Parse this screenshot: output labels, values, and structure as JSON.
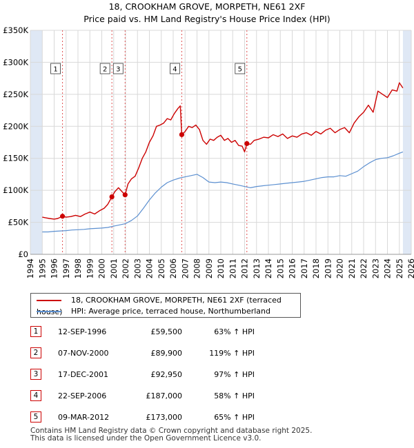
{
  "title": {
    "line1": "18, CROOKHAM GROVE, MORPETH, NE61 2XF",
    "line2": "Price paid vs. HM Land Registry's House Price Index (HPI)"
  },
  "colors": {
    "property": "#cc0000",
    "hpi": "#5b8fd0",
    "shade": "#dfe8f5",
    "vline": "#e05050"
  },
  "legend": {
    "property_label": "18, CROOKHAM GROVE, MORPETH, NE61 2XF (terraced house)",
    "hpi_label": "HPI: Average price, terraced house, Northumberland"
  },
  "sales": [
    {
      "num": "1",
      "date": "12-SEP-1996",
      "price": "£59,500",
      "hpi": "63% ↑ HPI"
    },
    {
      "num": "2",
      "date": "07-NOV-2000",
      "price": "£89,900",
      "hpi": "119% ↑ HPI"
    },
    {
      "num": "3",
      "date": "17-DEC-2001",
      "price": "£92,950",
      "hpi": "97% ↑ HPI"
    },
    {
      "num": "4",
      "date": "22-SEP-2006",
      "price": "£187,000",
      "hpi": "58% ↑ HPI"
    },
    {
      "num": "5",
      "date": "09-MAR-2012",
      "price": "£173,000",
      "hpi": "65% ↑ HPI"
    }
  ],
  "footer": {
    "line1": "Contains HM Land Registry data © Crown copyright and database right 2025.",
    "line2": "This data is licensed under the Open Government Licence v3.0."
  },
  "chart_data": {
    "type": "line",
    "title": "18, CROOKHAM GROVE, MORPETH, NE61 2XF",
    "subtitle": "Price paid vs. HM Land Registry's House Price Index (HPI)",
    "xlabel": "",
    "ylabel": "",
    "xlim": [
      1994,
      2026
    ],
    "ylim": [
      0,
      350000
    ],
    "grid": true,
    "legend_position": "below",
    "y_ticks": [
      0,
      50000,
      100000,
      150000,
      200000,
      250000,
      300000,
      350000
    ],
    "y_tick_labels": [
      "£0",
      "£50K",
      "£100K",
      "£150K",
      "£200K",
      "£250K",
      "£300K",
      "£350K"
    ],
    "x_ticks": [
      1994,
      1995,
      1996,
      1997,
      1998,
      1999,
      2000,
      2001,
      2002,
      2003,
      2004,
      2005,
      2006,
      2007,
      2008,
      2009,
      2010,
      2011,
      2012,
      2013,
      2014,
      2015,
      2016,
      2017,
      2018,
      2019,
      2020,
      2021,
      2022,
      2023,
      2024,
      2025,
      2026
    ],
    "shaded_ranges": [
      [
        1994,
        1995
      ],
      [
        2025.3,
        2026
      ]
    ],
    "sale_markers": [
      {
        "label": "1",
        "x": 1996.7,
        "y": 59500
      },
      {
        "label": "2",
        "x": 2000.85,
        "y": 89900
      },
      {
        "label": "3",
        "x": 2001.96,
        "y": 92950
      },
      {
        "label": "4",
        "x": 2006.72,
        "y": 187000
      },
      {
        "label": "5",
        "x": 2012.19,
        "y": 173000
      }
    ],
    "series": [
      {
        "name": "18, CROOKHAM GROVE, MORPETH, NE61 2XF (terraced house)",
        "x": [
          1995.0,
          1995.3,
          1995.6,
          1996.0,
          1996.3,
          1996.7,
          1997.0,
          1997.4,
          1997.8,
          1998.2,
          1998.6,
          1999.0,
          1999.4,
          1999.8,
          2000.2,
          2000.5,
          2000.85,
          2001.1,
          2001.4,
          2001.7,
          2001.96,
          2002.2,
          2002.5,
          2002.8,
          2003.1,
          2003.4,
          2003.7,
          2004.0,
          2004.3,
          2004.6,
          2004.9,
          2005.2,
          2005.5,
          2005.8,
          2006.1,
          2006.4,
          2006.6,
          2006.72,
          2007.0,
          2007.3,
          2007.6,
          2007.9,
          2008.2,
          2008.5,
          2008.8,
          2009.1,
          2009.4,
          2009.7,
          2010.0,
          2010.3,
          2010.6,
          2010.9,
          2011.2,
          2011.5,
          2011.8,
          2012.0,
          2012.19,
          2012.5,
          2012.8,
          2013.2,
          2013.6,
          2014.0,
          2014.4,
          2014.8,
          2015.2,
          2015.6,
          2016.0,
          2016.4,
          2016.8,
          2017.2,
          2017.6,
          2018.0,
          2018.4,
          2018.8,
          2019.2,
          2019.6,
          2020.0,
          2020.4,
          2020.8,
          2021.2,
          2021.6,
          2022.0,
          2022.4,
          2022.8,
          2023.2,
          2023.6,
          2024.0,
          2024.4,
          2024.8,
          2025.0,
          2025.3
        ],
        "values": [
          58000,
          57000,
          56000,
          55000,
          56000,
          59500,
          58000,
          59000,
          61000,
          59000,
          63000,
          66000,
          63000,
          68000,
          72000,
          78000,
          89900,
          98000,
          104000,
          98000,
          92950,
          110000,
          118000,
          122000,
          135000,
          150000,
          160000,
          175000,
          185000,
          200000,
          202000,
          205000,
          212000,
          210000,
          220000,
          228000,
          232000,
          187000,
          192000,
          200000,
          198000,
          202000,
          195000,
          178000,
          172000,
          180000,
          178000,
          183000,
          186000,
          178000,
          181000,
          175000,
          178000,
          170000,
          169000,
          160000,
          173000,
          172000,
          178000,
          180000,
          183000,
          182000,
          187000,
          184000,
          188000,
          181000,
          185000,
          183000,
          188000,
          190000,
          186000,
          192000,
          188000,
          194000,
          197000,
          190000,
          195000,
          198000,
          190000,
          205000,
          215000,
          222000,
          233000,
          222000,
          255000,
          250000,
          245000,
          257000,
          255000,
          268000,
          260000
        ]
      },
      {
        "name": "HPI: Average price, terraced house, Northumberland",
        "x": [
          1995.0,
          1995.5,
          1996.0,
          1996.5,
          1997.0,
          1997.5,
          1998.0,
          1998.5,
          1999.0,
          1999.5,
          2000.0,
          2000.5,
          2001.0,
          2001.5,
          2002.0,
          2002.5,
          2003.0,
          2003.5,
          2004.0,
          2004.5,
          2005.0,
          2005.5,
          2006.0,
          2006.5,
          2007.0,
          2007.5,
          2008.0,
          2008.5,
          2009.0,
          2009.5,
          2010.0,
          2010.5,
          2011.0,
          2011.5,
          2012.0,
          2012.5,
          2013.0,
          2013.5,
          2014.0,
          2014.5,
          2015.0,
          2015.5,
          2016.0,
          2016.5,
          2017.0,
          2017.5,
          2018.0,
          2018.5,
          2019.0,
          2019.5,
          2020.0,
          2020.5,
          2021.0,
          2021.5,
          2022.0,
          2022.5,
          2023.0,
          2023.5,
          2024.0,
          2024.5,
          2025.0,
          2025.3
        ],
        "values": [
          35000,
          35000,
          36000,
          36500,
          37000,
          38000,
          38500,
          39000,
          40000,
          40500,
          41000,
          42000,
          44000,
          46000,
          48000,
          53000,
          60000,
          72000,
          85000,
          96000,
          105000,
          112000,
          116000,
          119000,
          121000,
          123000,
          125000,
          120000,
          113000,
          112000,
          113000,
          112000,
          110000,
          108000,
          106000,
          104000,
          106000,
          107000,
          108000,
          109000,
          110000,
          111000,
          112000,
          113000,
          114000,
          116000,
          118000,
          120000,
          121000,
          121000,
          123000,
          122000,
          126000,
          130000,
          137000,
          143000,
          148000,
          150000,
          151000,
          154000,
          158000,
          160000
        ]
      }
    ]
  }
}
